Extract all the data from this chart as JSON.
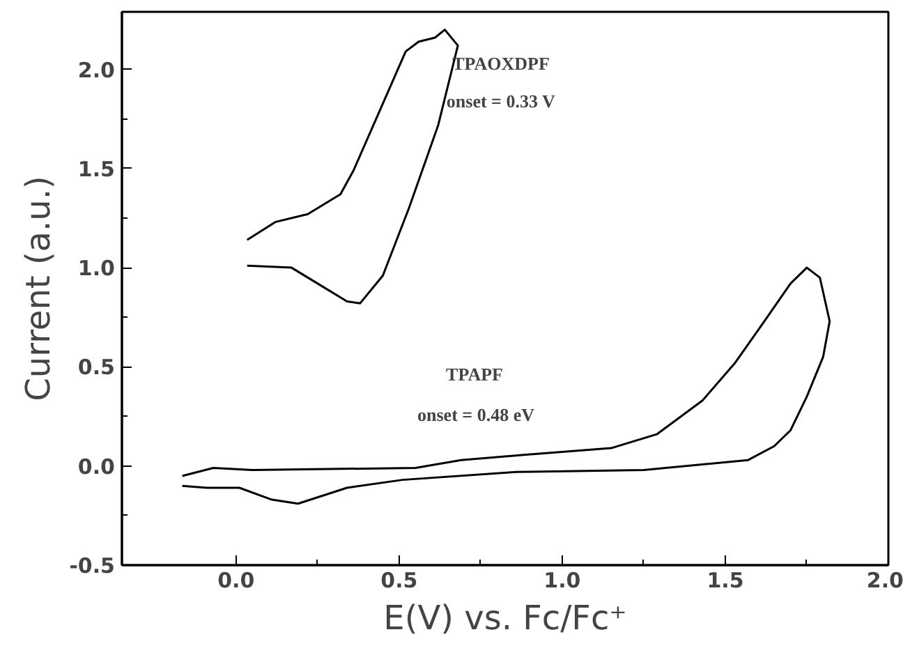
{
  "chart_data": {
    "type": "line",
    "xlabel": "E(V) vs. Fc/Fc⁺",
    "ylabel": "Current (a.u.)",
    "xlim": [
      -0.35,
      2.0
    ],
    "ylim": [
      -0.5,
      2.29
    ],
    "xticks": [
      {
        "value": 0,
        "label": "0.0"
      },
      0.5,
      {
        "value": 1,
        "label": "1.0"
      },
      1.5,
      {
        "value": 2,
        "label": "2.0"
      }
    ],
    "yticks": [
      -0.5,
      {
        "value": 0,
        "label": "0.0"
      },
      0.5,
      {
        "value": 1,
        "label": "1.0"
      },
      1.5,
      {
        "value": 2,
        "label": "2.0"
      }
    ],
    "grid": false,
    "marker": "none",
    "line_style": "solid",
    "series": [
      {
        "color": "#000000",
        "x": [
          0.034,
          0.12,
          0.22,
          0.32,
          0.36,
          0.44,
          0.52,
          0.56,
          0.61,
          0.64,
          0.68,
          0.62,
          0.53,
          0.45,
          0.38,
          0.34,
          0.25,
          0.17,
          0.034
        ],
        "values": [
          1.14,
          1.23,
          1.27,
          1.37,
          1.49,
          1.79,
          2.09,
          2.14,
          2.16,
          2.2,
          2.12,
          1.72,
          1.3,
          0.96,
          0.82,
          0.83,
          0.92,
          1.0,
          1.01
        ]
      },
      {
        "color": "#000000",
        "x": [
          -0.165,
          -0.07,
          0.05,
          0.55,
          0.69,
          0.91,
          1.15,
          1.29,
          1.43,
          1.53,
          1.62,
          1.7,
          1.75,
          1.79,
          1.82,
          1.8,
          1.75,
          1.7,
          1.65,
          1.57,
          1.25,
          0.86,
          0.51,
          0.34,
          0.19,
          0.11,
          0.01,
          -0.09,
          -0.165
        ],
        "values": [
          -0.05,
          -0.01,
          -0.02,
          -0.01,
          0.03,
          0.06,
          0.09,
          0.16,
          0.33,
          0.52,
          0.73,
          0.92,
          1.0,
          0.95,
          0.73,
          0.55,
          0.35,
          0.18,
          0.1,
          0.03,
          -0.02,
          -0.03,
          -0.07,
          -0.11,
          -0.19,
          -0.17,
          -0.11,
          -0.11,
          -0.1
        ]
      }
    ],
    "annotations": [
      "TPAOXDPF",
      "onset = 0.33 V",
      "TPAPF",
      "onset = 0.48 eV"
    ]
  }
}
